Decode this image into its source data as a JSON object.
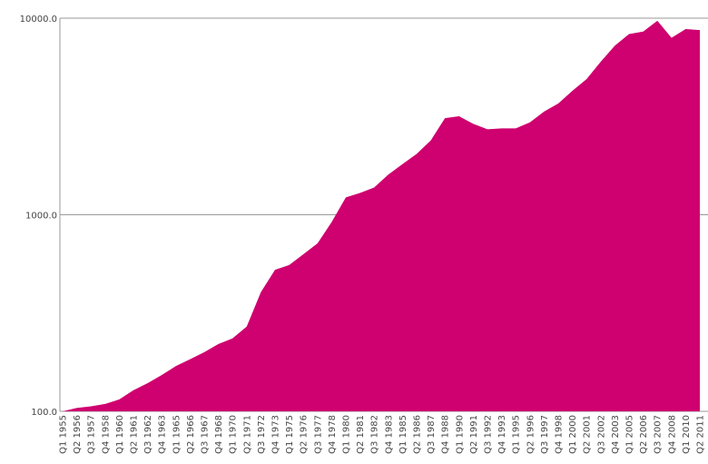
{
  "chart_data": {
    "type": "area",
    "log_scale": true,
    "grid": true,
    "color": "#cf006f",
    "categories": [
      "Q1 1955",
      "Q2 1956",
      "Q3 1957",
      "Q4 1958",
      "Q1 1960",
      "Q2 1961",
      "Q3 1962",
      "Q4 1963",
      "Q1 1965",
      "Q2 1966",
      "Q3 1967",
      "Q4 1968",
      "Q1 1970",
      "Q2 1971",
      "Q3 1972",
      "Q4 1973",
      "Q1 1975",
      "Q2 1976",
      "Q3 1977",
      "Q4 1978",
      "Q1 1980",
      "Q2 1981",
      "Q3 1982",
      "Q4 1983",
      "Q1 1985",
      "Q2 1986",
      "Q3 1987",
      "Q4 1988",
      "Q1 1990",
      "Q2 1991",
      "Q3 1992",
      "Q4 1993",
      "Q1 1995",
      "Q2 1996",
      "Q3 1997",
      "Q4 1998",
      "Q1 2000",
      "Q2 2001",
      "Q3 2002",
      "Q4 2003",
      "Q1 2005",
      "Q2 2006",
      "Q3 2007",
      "Q4 2008",
      "Q1 2010",
      "Q2 2011"
    ],
    "values": [
      100,
      104,
      106,
      109,
      115,
      128,
      139,
      153,
      170,
      184,
      200,
      220,
      235,
      270,
      404,
      525,
      555,
      630,
      715,
      918,
      1225,
      1290,
      1375,
      1600,
      1810,
      2040,
      2390,
      3100,
      3170,
      2900,
      2720,
      2750,
      2750,
      2950,
      3350,
      3680,
      4270,
      4900,
      6000,
      7250,
      8300,
      8550,
      9700,
      7950,
      8800,
      8700
    ],
    "ylim": [
      100,
      10000
    ],
    "yticks": [
      {
        "value": 100,
        "label": "100.0"
      },
      {
        "value": 1000,
        "label": "1000.0"
      },
      {
        "value": 10000,
        "label": "10000.0"
      }
    ]
  }
}
